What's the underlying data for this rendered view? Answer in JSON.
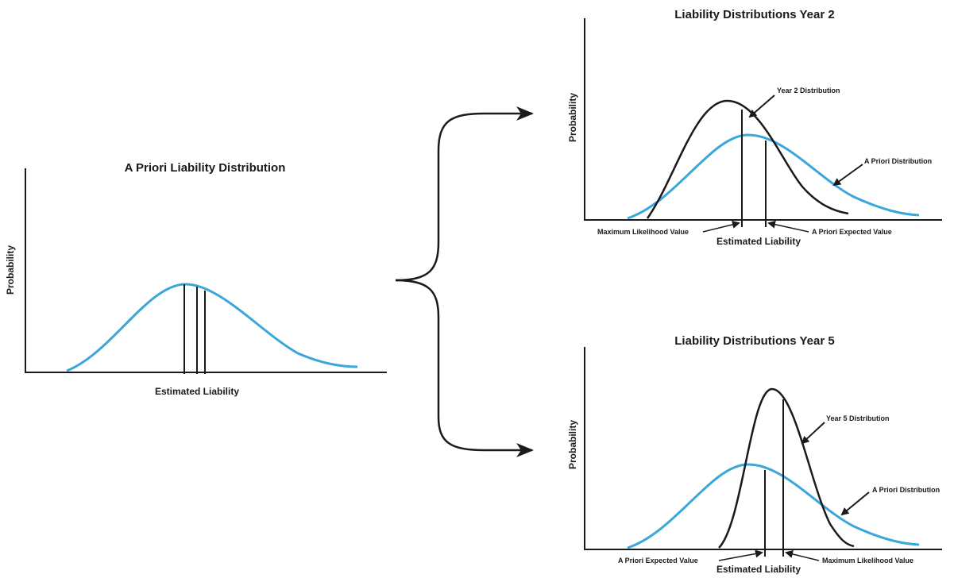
{
  "colors": {
    "a_priori_curve": "#3aa6da",
    "observed_curve": "#1a1a1a",
    "axis": "#1a1a1a",
    "background": "#ffffff"
  },
  "panel_a_priori": {
    "title": "A Priori Liability Distribution",
    "x_label": "Estimated Liability",
    "y_label": "Probability"
  },
  "panel_year2": {
    "title": "Liability Distributions Year 2",
    "x_label": "Estimated Liability",
    "y_label": "Probability",
    "observed_curve_label": "Year 2 Distribution",
    "a_priori_curve_label": "A Priori Distribution",
    "left_marker_label": "Maximum Likelihood Value",
    "right_marker_label": "A Priori Expected Value"
  },
  "panel_year5": {
    "title": "Liability Distributions Year 5",
    "x_label": "Estimated Liability",
    "y_label": "Probability",
    "observed_curve_label": "Year 5 Distribution",
    "a_priori_curve_label": "A Priori Distribution",
    "left_marker_label": "A Priori Expected Value",
    "right_marker_label": "Maximum Likelihood Value"
  }
}
